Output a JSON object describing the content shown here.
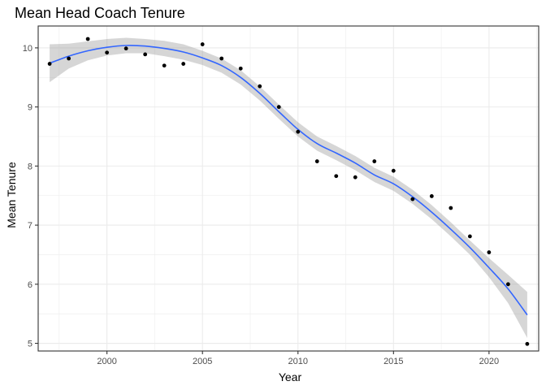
{
  "chart_data": {
    "type": "scatter",
    "title": "Mean Head Coach Tenure",
    "xlabel": "Year",
    "ylabel": "Mean Tenure",
    "xlim": [
      1996.4,
      2022.6
    ],
    "ylim": [
      4.87,
      10.37
    ],
    "x_ticks": [
      2000,
      2005,
      2010,
      2015,
      2020
    ],
    "y_ticks": [
      5,
      6,
      7,
      8,
      9,
      10
    ],
    "grid": true,
    "colors": {
      "points": "#000000",
      "smooth_line": "#3366ff",
      "confidence_band": "#999999",
      "grid_major": "#ebebeb",
      "panel_border": "#333333"
    },
    "points": [
      {
        "x": 1997,
        "y": 9.73
      },
      {
        "x": 1998,
        "y": 9.82
      },
      {
        "x": 1999,
        "y": 10.15
      },
      {
        "x": 2000,
        "y": 9.92
      },
      {
        "x": 2001,
        "y": 9.99
      },
      {
        "x": 2002,
        "y": 9.89
      },
      {
        "x": 2003,
        "y": 9.7
      },
      {
        "x": 2004,
        "y": 9.73
      },
      {
        "x": 2005,
        "y": 10.06
      },
      {
        "x": 2006,
        "y": 9.82
      },
      {
        "x": 2007,
        "y": 9.65
      },
      {
        "x": 2008,
        "y": 9.35
      },
      {
        "x": 2009,
        "y": 9.0
      },
      {
        "x": 2010,
        "y": 8.58
      },
      {
        "x": 2011,
        "y": 8.08
      },
      {
        "x": 2012,
        "y": 7.83
      },
      {
        "x": 2013,
        "y": 7.81
      },
      {
        "x": 2014,
        "y": 8.08
      },
      {
        "x": 2015,
        "y": 7.92
      },
      {
        "x": 2016,
        "y": 7.44
      },
      {
        "x": 2017,
        "y": 7.49
      },
      {
        "x": 2018,
        "y": 7.29
      },
      {
        "x": 2019,
        "y": 6.81
      },
      {
        "x": 2020,
        "y": 6.54
      },
      {
        "x": 2021,
        "y": 6.0
      },
      {
        "x": 2022,
        "y": 4.99
      }
    ],
    "smooth": {
      "x": [
        1997,
        1998,
        1999,
        2000,
        2001,
        2002,
        2003,
        2004,
        2005,
        2006,
        2007,
        2008,
        2009,
        2010,
        2011,
        2012,
        2013,
        2014,
        2015,
        2016,
        2017,
        2018,
        2019,
        2020,
        2021,
        2022
      ],
      "y": [
        9.74,
        9.86,
        9.95,
        10.01,
        10.04,
        10.03,
        9.99,
        9.93,
        9.83,
        9.7,
        9.5,
        9.23,
        8.92,
        8.62,
        8.38,
        8.22,
        8.05,
        7.85,
        7.7,
        7.48,
        7.22,
        6.93,
        6.62,
        6.28,
        5.92,
        5.48
      ],
      "lower": [
        9.42,
        9.65,
        9.79,
        9.87,
        9.91,
        9.91,
        9.86,
        9.8,
        9.71,
        9.58,
        9.38,
        9.11,
        8.8,
        8.5,
        8.26,
        8.1,
        7.93,
        7.73,
        7.58,
        7.36,
        7.1,
        6.81,
        6.5,
        6.12,
        5.68,
        5.09
      ],
      "upper": [
        10.06,
        10.07,
        10.11,
        10.15,
        10.17,
        10.15,
        10.12,
        10.06,
        9.95,
        9.82,
        9.62,
        9.35,
        9.04,
        8.74,
        8.5,
        8.34,
        8.17,
        7.97,
        7.82,
        7.6,
        7.34,
        7.05,
        6.74,
        6.44,
        6.16,
        5.87
      ]
    }
  }
}
